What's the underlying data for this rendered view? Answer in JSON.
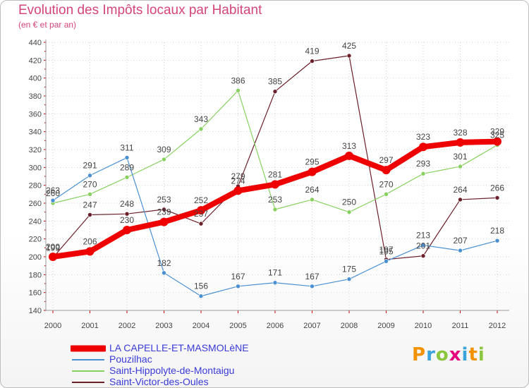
{
  "header": {
    "title": "Evolution des Impôts locaux par Habitant",
    "subtitle": "(en € et par an)"
  },
  "colors": {
    "primary": "#ee0000",
    "pouzilhac": "#4a90d0",
    "saint_hippolyte": "#88d060",
    "saint_victor": "#6b1f2a",
    "title": "#d4457a",
    "legend_text": "#3a3ad8",
    "axis_text": "#444444",
    "grid": "#d0d0d0"
  },
  "chart_data": {
    "type": "line",
    "title": "Evolution des Impôts locaux par Habitant",
    "subtitle": "(en € et par an)",
    "xlabel": "",
    "ylabel": "",
    "x": [
      "2000",
      "2001",
      "2002",
      "2003",
      "2004",
      "2005",
      "2006",
      "2007",
      "2008",
      "2009",
      "2010",
      "2011",
      "2012"
    ],
    "ylim": [
      140,
      440
    ],
    "yticks": [
      140,
      160,
      180,
      200,
      220,
      240,
      260,
      280,
      300,
      320,
      340,
      360,
      380,
      400,
      420,
      440
    ],
    "series": [
      {
        "name": "LA CAPELLE-ET-MASMOLèNE",
        "key": "capelle",
        "values": [
          200,
          206,
          230,
          239,
          252,
          274,
          281,
          295,
          313,
          297,
          323,
          328,
          329
        ],
        "labels": [
          "200",
          "206",
          "230",
          "239",
          "252",
          "274",
          "281",
          "295",
          "313",
          "297",
          "323",
          "328",
          "329"
        ],
        "color": "#ee0000"
      },
      {
        "name": "Pouzilhac",
        "key": "pouzilhac",
        "values": [
          263,
          291,
          311,
          182,
          156,
          167,
          171,
          167,
          175,
          195,
          213,
          207,
          218
        ],
        "labels": [
          "263",
          "291",
          "311",
          "182",
          "156",
          "167",
          "171",
          "167",
          "175",
          "195",
          "213",
          "207",
          "218"
        ],
        "color": "#4a90d0"
      },
      {
        "name": "Saint-Hippolyte-de-Montaigu",
        "key": "hippolyte",
        "values": [
          260,
          270,
          289,
          309,
          343,
          386,
          253,
          264,
          250,
          270,
          293,
          301,
          325
        ],
        "labels": [
          "260",
          "270",
          "289",
          "309",
          "343",
          "386",
          "253",
          "264",
          "250",
          "270",
          "293",
          "301",
          "325"
        ],
        "color": "#88d060"
      },
      {
        "name": "Saint-Victor-des-Oules",
        "key": "victor",
        "values": [
          199,
          247,
          248,
          253,
          237,
          279,
          385,
          419,
          425,
          197,
          201,
          264,
          266
        ],
        "labels": [
          "199",
          "247",
          "248",
          "253",
          "237",
          "279",
          "385",
          "419",
          "425",
          "197",
          "201",
          "264",
          "266"
        ],
        "color": "#6b1f2a"
      }
    ],
    "legend": "bottom-left",
    "grid": true
  },
  "legend": [
    {
      "label": "LA CAPELLE-ET-MASMOLèNE",
      "color": "#ee0000"
    },
    {
      "label": "Pouzilhac",
      "color": "#4a90d0"
    },
    {
      "label": "Saint-Hippolyte-de-Montaigu",
      "color": "#88d060"
    },
    {
      "label": "Saint-Victor-des-Oules",
      "color": "#6b1f2a"
    }
  ],
  "logo": {
    "text": "Proxiti",
    "letters": [
      {
        "ch": "P",
        "color": "#f39200"
      },
      {
        "ch": "r",
        "color": "#3aa3dc"
      },
      {
        "ch": "o",
        "color": "#8cc63f"
      },
      {
        "ch": "x",
        "color": "#e5007e"
      },
      {
        "ch": "i",
        "color": "#3aa3dc"
      },
      {
        "ch": "t",
        "color": "#f39200"
      },
      {
        "ch": "i",
        "color": "#8cc63f"
      }
    ]
  }
}
